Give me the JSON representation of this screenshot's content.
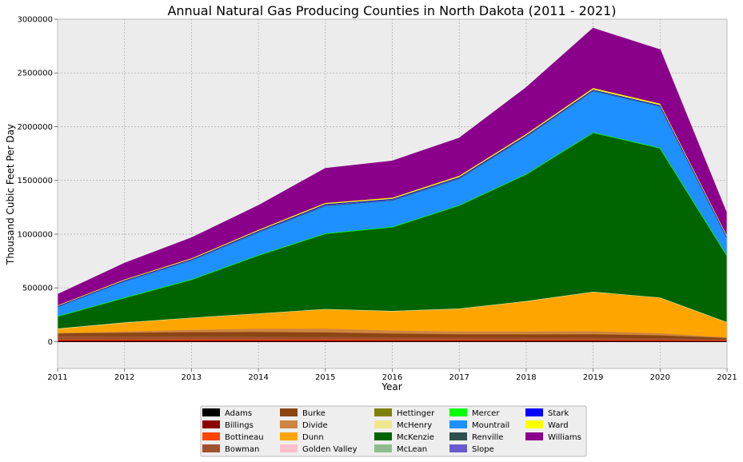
{
  "chart_data": {
    "type": "area",
    "stacked": true,
    "title": "Annual Natural Gas Producing Counties in North Dakota (2011 - 2021)",
    "xlabel": "Year",
    "ylabel": "Thousand Cubic Feet Per Day",
    "x": [
      2011,
      2012,
      2013,
      2014,
      2015,
      2016,
      2017,
      2018,
      2019,
      2020,
      2021
    ],
    "xlim": [
      2011,
      2021
    ],
    "ylim": [
      -250000,
      3000000
    ],
    "yticks": [
      0,
      500000,
      1000000,
      1500000,
      2000000,
      2500000,
      3000000
    ],
    "grid": true,
    "legend_position": "bottom",
    "series": [
      {
        "name": "Adams",
        "color": "#000000",
        "values": [
          600,
          600,
          500,
          500,
          400,
          400,
          400,
          400,
          300,
          300,
          300
        ]
      },
      {
        "name": "Billings",
        "color": "#8B0000",
        "values": [
          12000,
          12000,
          11000,
          11000,
          11000,
          10000,
          10000,
          10000,
          10000,
          9000,
          8000
        ]
      },
      {
        "name": "Bottineau",
        "color": "#FF4500",
        "values": [
          5000,
          5000,
          6000,
          6000,
          6000,
          5000,
          5000,
          5000,
          5000,
          4000,
          3000
        ]
      },
      {
        "name": "Bowman",
        "color": "#A0522D",
        "values": [
          36000,
          34000,
          32000,
          30000,
          28000,
          25000,
          23000,
          22000,
          21000,
          18000,
          10000
        ]
      },
      {
        "name": "Burke",
        "color": "#8B4513",
        "values": [
          22000,
          30000,
          38000,
          42000,
          40000,
          34000,
          30000,
          30000,
          32000,
          26000,
          12000
        ]
      },
      {
        "name": "Divide",
        "color": "#CD853F",
        "values": [
          5000,
          12000,
          22000,
          30000,
          35000,
          28000,
          26000,
          27000,
          28000,
          20000,
          6000
        ]
      },
      {
        "name": "Dunn",
        "color": "#FFA500",
        "values": [
          38000,
          82000,
          110000,
          140000,
          180000,
          180000,
          210000,
          280000,
          365000,
          330000,
          140000
        ]
      },
      {
        "name": "Golden Valley",
        "color": "#FFC0CB",
        "values": [
          2000,
          2000,
          2000,
          2000,
          2000,
          2000,
          2000,
          2000,
          2000,
          2000,
          1000
        ]
      },
      {
        "name": "Hettinger",
        "color": "#808000",
        "values": [
          500,
          500,
          500,
          500,
          500,
          500,
          500,
          500,
          500,
          500,
          300
        ]
      },
      {
        "name": "McHenry",
        "color": "#F0E68C",
        "values": [
          500,
          500,
          500,
          500,
          500,
          500,
          500,
          500,
          500,
          500,
          300
        ]
      },
      {
        "name": "McKenzie",
        "color": "#006400",
        "values": [
          115000,
          230000,
          355000,
          540000,
          700000,
          780000,
          960000,
          1180000,
          1480000,
          1390000,
          620000
        ]
      },
      {
        "name": "McLean",
        "color": "#8FBC8F",
        "values": [
          500,
          500,
          1000,
          2000,
          3000,
          2000,
          2000,
          2000,
          2000,
          2000,
          1000
        ]
      },
      {
        "name": "Mercer",
        "color": "#00FF00",
        "values": [
          500,
          500,
          500,
          500,
          500,
          500,
          500,
          500,
          500,
          500,
          500
        ]
      },
      {
        "name": "Mountrail",
        "color": "#1E90FF",
        "values": [
          85000,
          150000,
          175000,
          210000,
          255000,
          245000,
          245000,
          345000,
          385000,
          385000,
          165000
        ]
      },
      {
        "name": "Renville",
        "color": "#2F4F4F",
        "values": [
          5000,
          5000,
          5000,
          5000,
          5000,
          5000,
          5000,
          5000,
          5000,
          5000,
          3000
        ]
      },
      {
        "name": "Slope",
        "color": "#6A5ACD",
        "values": [
          1000,
          2000,
          3000,
          5000,
          6000,
          5000,
          5000,
          4000,
          4000,
          3000,
          1000
        ]
      },
      {
        "name": "Stark",
        "color": "#0000FF",
        "values": [
          2000,
          3000,
          4000,
          5000,
          6000,
          5000,
          5000,
          5000,
          4000,
          4000,
          2000
        ]
      },
      {
        "name": "Ward",
        "color": "#FFFF00",
        "values": [
          6000,
          8000,
          8000,
          9000,
          11000,
          11000,
          12000,
          12000,
          14000,
          14000,
          10000
        ]
      },
      {
        "name": "Williams",
        "color": "#8B008B",
        "values": [
          100000,
          150000,
          190000,
          225000,
          320000,
          340000,
          350000,
          430000,
          555000,
          500000,
          200000
        ]
      }
    ]
  }
}
